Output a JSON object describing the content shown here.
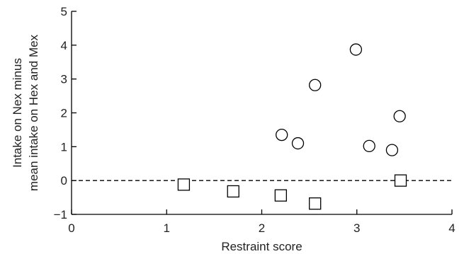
{
  "chart_data": {
    "type": "scatter",
    "title": "",
    "xlabel": "Restraint score",
    "ylabel_lines": [
      "Intake on Nex minus",
      "mean intake on Hex and Mex"
    ],
    "xlim": [
      0,
      4
    ],
    "ylim": [
      -1,
      5
    ],
    "xticks": [
      0,
      1,
      2,
      3,
      4
    ],
    "yticks": [
      -1,
      0,
      1,
      2,
      3,
      4,
      5
    ],
    "ytick_labels": [
      "−1",
      "0",
      "1",
      "2",
      "3",
      "4",
      "5"
    ],
    "grid": false,
    "legend": "none",
    "reference_line": {
      "y": 0,
      "style": "dashed"
    },
    "series": [
      {
        "marker": "square",
        "x": [
          1.18,
          1.7,
          2.2,
          2.56,
          3.46
        ],
        "y": [
          -0.12,
          -0.32,
          -0.44,
          -0.68,
          0.0
        ]
      },
      {
        "marker": "circle",
        "x": [
          2.21,
          2.38,
          2.56,
          2.99,
          3.13,
          3.37,
          3.45
        ],
        "y": [
          1.35,
          1.1,
          2.82,
          3.87,
          1.02,
          0.9,
          1.9
        ]
      }
    ]
  }
}
